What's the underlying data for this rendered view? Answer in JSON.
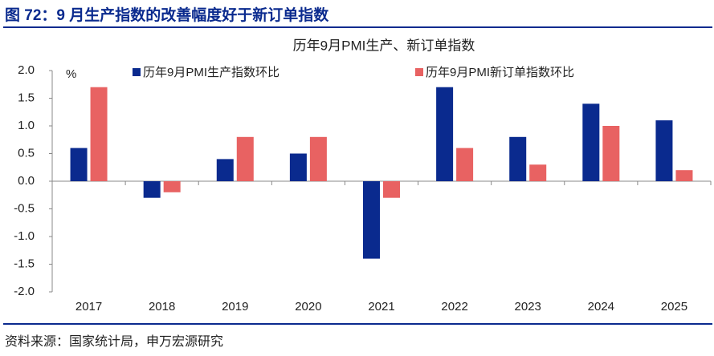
{
  "header": {
    "title": "图 72：9 月生产指数的改善幅度好于新订单指数"
  },
  "chart_data": {
    "type": "bar",
    "title": "历年9月PMI生产、新订单指数",
    "y_label": "%",
    "categories": [
      "2017",
      "2018",
      "2019",
      "2020",
      "2021",
      "2022",
      "2023",
      "2024",
      "2025"
    ],
    "series": [
      {
        "name": "历年9月PMI生产指数环比",
        "color": "#0a2a8e",
        "values": [
          0.6,
          -0.3,
          0.4,
          0.5,
          -1.4,
          1.7,
          0.8,
          1.4,
          1.1
        ]
      },
      {
        "name": "历年9月PMI新订单指数环比",
        "color": "#e86262",
        "values": [
          1.7,
          -0.2,
          0.8,
          0.8,
          -0.3,
          0.6,
          0.3,
          1.0,
          0.2
        ]
      }
    ],
    "ylim": [
      -2,
      2
    ],
    "yticks": [
      {
        "value": -2,
        "label": "-2.0"
      },
      -1.5,
      {
        "value": -1,
        "label": "-1.0"
      },
      -0.5,
      {
        "value": 0,
        "label": "0.0"
      },
      0.5,
      {
        "value": 1,
        "label": "1.0"
      },
      1.5,
      {
        "value": 2,
        "label": "2.0"
      }
    ],
    "grid": false,
    "legend": "top"
  },
  "footer": {
    "source": "资料来源：国家统计局，申万宏源研究"
  }
}
